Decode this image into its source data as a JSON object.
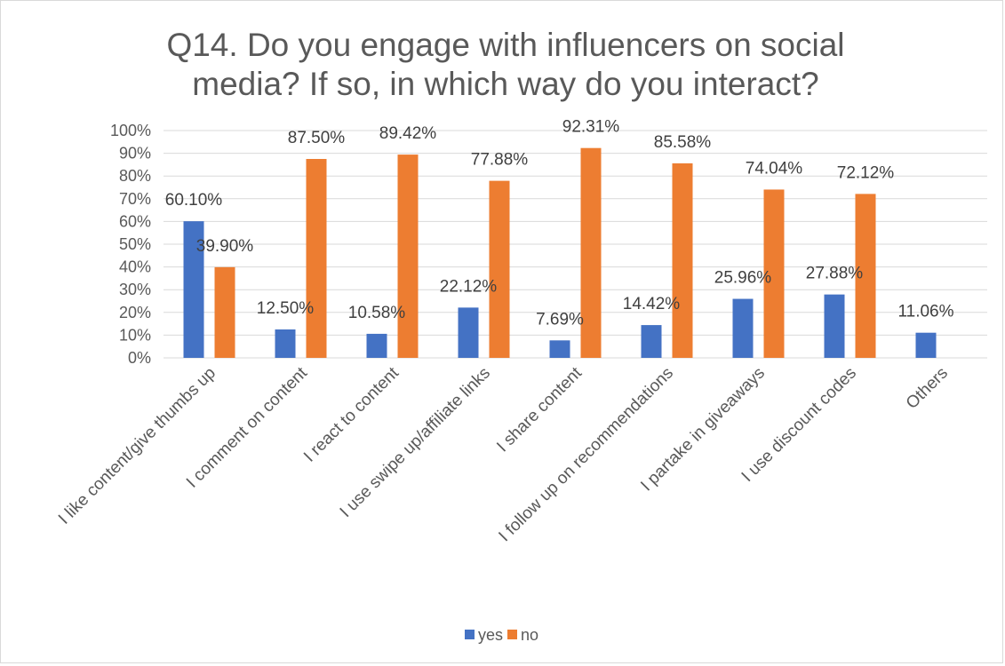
{
  "chart_data": {
    "type": "bar",
    "title": "Q14. Do you engage with influencers on social media? If so, in which way do you interact?",
    "title_lines": [
      "Q14. Do you engage with influencers on social",
      "media? If so, in which way do you interact?"
    ],
    "categories": [
      "I like content/give thumbs up",
      "I comment on content",
      "I react to content",
      "I use swipe up/affiliate links",
      "I share content",
      "I follow up on recommendations",
      "I partake in giveaways",
      "I use discount codes",
      "Others"
    ],
    "series": [
      {
        "name": "yes",
        "color": "#4472c4",
        "values": [
          60.1,
          12.5,
          10.58,
          22.12,
          7.69,
          14.42,
          25.96,
          27.88,
          11.06
        ],
        "labels": [
          "60.10%",
          "12.50%",
          "10.58%",
          "22.12%",
          "7.69%",
          "14.42%",
          "25.96%",
          "27.88%",
          "11.06%"
        ]
      },
      {
        "name": "no",
        "color": "#ed7d31",
        "values": [
          39.9,
          87.5,
          89.42,
          77.88,
          92.31,
          85.58,
          74.04,
          72.12,
          null
        ],
        "labels": [
          "39.90%",
          "87.50%",
          "89.42%",
          "77.88%",
          "92.31%",
          "85.58%",
          "74.04%",
          "72.12%",
          ""
        ]
      }
    ],
    "ylim": [
      0,
      100
    ],
    "yticks": [
      0,
      10,
      20,
      30,
      40,
      50,
      60,
      70,
      80,
      90,
      100
    ],
    "ytick_labels": [
      "0%",
      "10%",
      "20%",
      "30%",
      "40%",
      "50%",
      "60%",
      "70%",
      "80%",
      "90%",
      "100%"
    ],
    "grid": true,
    "legend_position": "bottom",
    "gridline_color": "#d9d9d9",
    "axis_text_color": "#595959"
  }
}
